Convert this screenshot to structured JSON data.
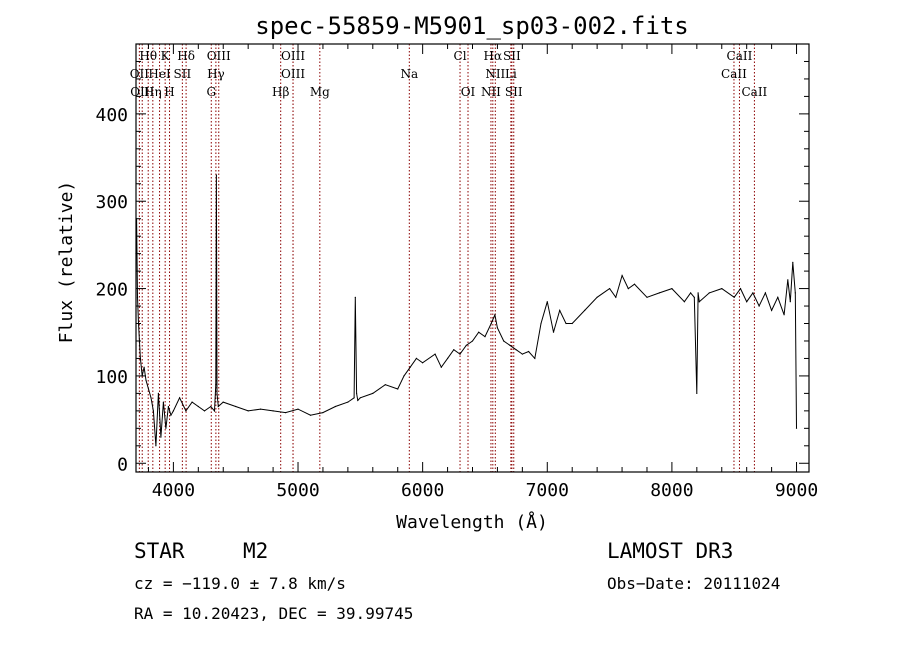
{
  "chart_data": {
    "type": "line",
    "title": "spec-55859-M5901_sp03-002.fits",
    "xlabel": "Wavelength (Å)",
    "ylabel": "Flux (relative)",
    "xlim": [
      3700,
      9100
    ],
    "ylim": [
      -10,
      480
    ],
    "xticks": [
      4000,
      5000,
      6000,
      7000,
      8000,
      9000
    ],
    "yticks": [
      0,
      100,
      200,
      300,
      400
    ],
    "series": [
      {
        "name": "flux",
        "color": "#000000",
        "x": [
          3700,
          3705,
          3712,
          3720,
          3735,
          3750,
          3765,
          3780,
          3800,
          3820,
          3840,
          3860,
          3880,
          3900,
          3920,
          3940,
          3960,
          3980,
          4000,
          4050,
          4100,
          4150,
          4200,
          4250,
          4300,
          4330,
          4340,
          4345,
          4350,
          4360,
          4400,
          4500,
          4600,
          4700,
          4800,
          4900,
          5000,
          5100,
          5200,
          5300,
          5400,
          5450,
          5460,
          5470,
          5480,
          5500,
          5600,
          5700,
          5800,
          5850,
          5900,
          5950,
          6000,
          6100,
          6150,
          6200,
          6250,
          6300,
          6350,
          6400,
          6450,
          6500,
          6550,
          6580,
          6600,
          6650,
          6700,
          6750,
          6800,
          6850,
          6900,
          6950,
          7000,
          7050,
          7100,
          7150,
          7200,
          7300,
          7400,
          7500,
          7550,
          7600,
          7650,
          7700,
          7800,
          7900,
          8000,
          8100,
          8150,
          8180,
          8200,
          8210,
          8220,
          8300,
          8400,
          8500,
          8550,
          8600,
          8650,
          8700,
          8750,
          8800,
          8850,
          8900,
          8930,
          8950,
          8970,
          8990,
          9000
        ],
        "y": [
          240,
          280,
          190,
          160,
          120,
          100,
          110,
          95,
          85,
          75,
          60,
          20,
          80,
          30,
          70,
          40,
          65,
          55,
          60,
          75,
          60,
          70,
          65,
          60,
          65,
          60,
          90,
          330,
          80,
          65,
          70,
          65,
          60,
          62,
          60,
          58,
          62,
          55,
          58,
          65,
          70,
          75,
          190,
          80,
          72,
          75,
          80,
          90,
          85,
          100,
          110,
          120,
          115,
          125,
          110,
          120,
          130,
          125,
          135,
          140,
          150,
          145,
          160,
          170,
          155,
          140,
          135,
          130,
          125,
          128,
          120,
          160,
          185,
          150,
          175,
          160,
          160,
          175,
          190,
          200,
          190,
          215,
          200,
          205,
          190,
          195,
          200,
          185,
          195,
          190,
          80,
          195,
          185,
          195,
          200,
          190,
          200,
          185,
          195,
          180,
          195,
          175,
          190,
          170,
          210,
          185,
          230,
          195,
          40
        ]
      }
    ],
    "line_color": "#8b0000",
    "emission_lines": [
      {
        "label": "Hθ",
        "x": 3798,
        "row": 0
      },
      {
        "label": "K",
        "x": 3934,
        "row": 0
      },
      {
        "label": "Hδ",
        "x": 4102,
        "row": 0
      },
      {
        "label": "OIII",
        "x": 4364,
        "row": 0
      },
      {
        "label": "OIII",
        "x": 4960,
        "row": 0
      },
      {
        "label": "Cl",
        "x": 6300,
        "row": 0
      },
      {
        "label": "Hα",
        "x": 6563,
        "row": 0
      },
      {
        "label": "SII",
        "x": 6716,
        "row": 0
      },
      {
        "label": "CaII",
        "x": 8542,
        "row": 0
      },
      {
        "label": "OII",
        "x": 3727,
        "row": 1
      },
      {
        "label": "HeI",
        "x": 3889,
        "row": 1
      },
      {
        "label": "SII",
        "x": 4072,
        "row": 1
      },
      {
        "label": "Hγ",
        "x": 4341,
        "row": 1
      },
      {
        "label": "OIII",
        "x": 4960,
        "row": 1
      },
      {
        "label": "Na",
        "x": 5893,
        "row": 1
      },
      {
        "label": "NII",
        "x": 6583,
        "row": 1
      },
      {
        "label": "Li",
        "x": 6708,
        "row": 1
      },
      {
        "label": "CaII",
        "x": 8498,
        "row": 1
      },
      {
        "label": "OIII",
        "x": 3750,
        "row": 2
      },
      {
        "label": "Hη",
        "x": 3835,
        "row": 2
      },
      {
        "label": "H",
        "x": 3969,
        "row": 2
      },
      {
        "label": "G",
        "x": 4304,
        "row": 2
      },
      {
        "label": "Hβ",
        "x": 4861,
        "row": 2
      },
      {
        "label": "Mg",
        "x": 5175,
        "row": 2
      },
      {
        "label": "OI",
        "x": 6364,
        "row": 2
      },
      {
        "label": "NII",
        "x": 6548,
        "row": 2
      },
      {
        "label": "SII",
        "x": 6731,
        "row": 2
      },
      {
        "label": "CaII",
        "x": 8662,
        "row": 2
      }
    ]
  },
  "info": {
    "object_class": "STAR",
    "subclass": "M2",
    "survey": "LAMOST DR3",
    "redshift": "cz = −119.0 ± 7.8 km/s",
    "obs_date": "Obs−Date: 20111024",
    "coords": "RA =  10.20423, DEC =  39.99745"
  }
}
